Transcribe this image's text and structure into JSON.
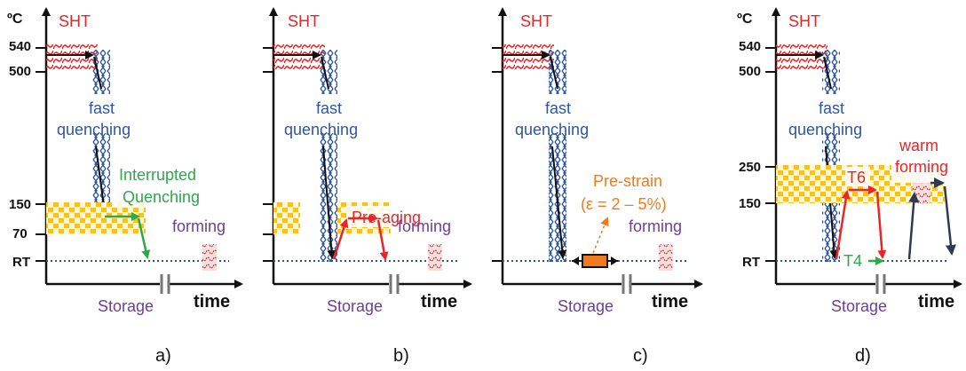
{
  "labels": {
    "temp_unit": "ºC",
    "sht": "SHT",
    "quench1": "fast",
    "quench2": "quenching",
    "storage": "Storage",
    "time": "time",
    "forming": "forming",
    "rt": "RT",
    "t540": "540",
    "t500": "500",
    "t250": "250",
    "t150": "150",
    "t70": "70"
  },
  "panels": {
    "a": {
      "caption": "a)",
      "process1": "Interrupted",
      "process2": "Quenching"
    },
    "b": {
      "caption": "b)",
      "process": "Pre-aging"
    },
    "c": {
      "caption": "c)",
      "process1": "Pre-strain",
      "process2": "(ε = 2 – 5%)"
    },
    "d": {
      "caption": "d)",
      "t6": "T6",
      "t4": "T4",
      "warm1": "warm",
      "warm2": "forming"
    }
  },
  "colors": {
    "sht": "#e8262a",
    "quench": "#2f56a3",
    "storage": "#6b3f98",
    "interrupted": "#2ea84a",
    "preaging": "#e8262a",
    "prestrain": "#f07a1e",
    "band": "#f7c21d",
    "axis": "#111111",
    "rt_line": "#2f56a3",
    "warm_arrow": "#2e3b4e"
  }
}
